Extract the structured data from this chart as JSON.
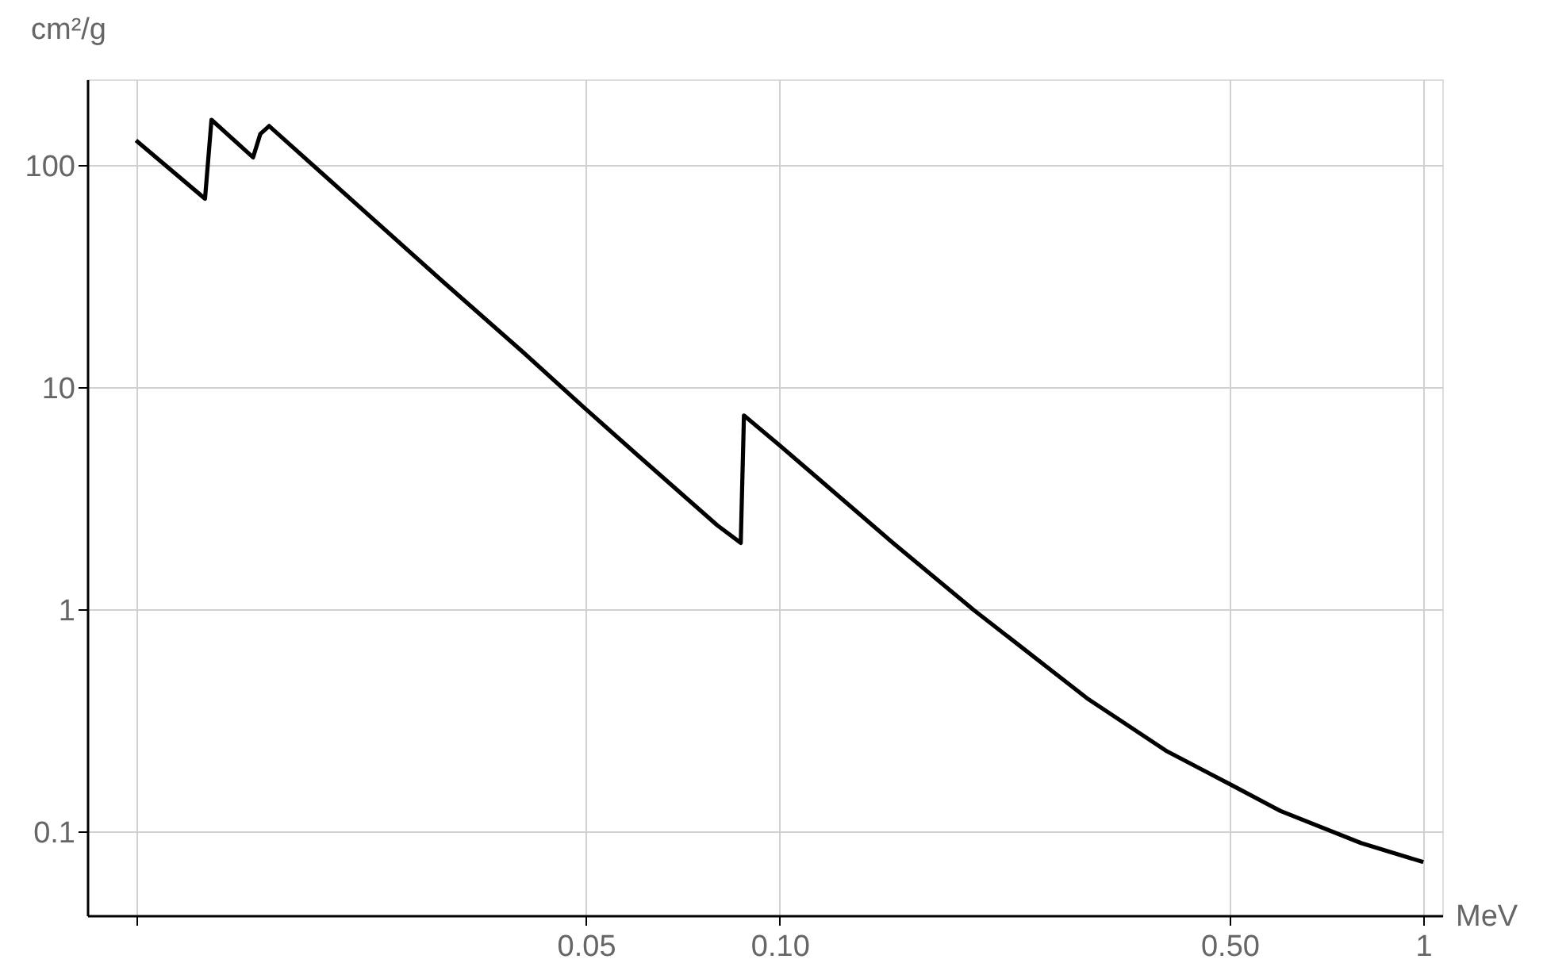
{
  "chart_data": {
    "type": "line",
    "xlabel": "MeV",
    "ylabel": "cm²/g",
    "log": "xy",
    "grid": true,
    "line_style": "solid",
    "x": [
      0.01,
      0.0128,
      0.0131,
      0.0152,
      0.0156,
      0.0161,
      0.02,
      0.03,
      0.04,
      0.05,
      0.06,
      0.08,
      0.087,
      0.088,
      0.1,
      0.15,
      0.2,
      0.3,
      0.4,
      0.5,
      0.6,
      0.8,
      1.0
    ],
    "series": [
      {
        "color": "#000000",
        "values": [
          130,
          71,
          161,
          109,
          139,
          151,
          86,
          30,
          14.4,
          8.0,
          5.0,
          2.4,
          2.0,
          7.5,
          5.5,
          2.0,
          1.0,
          0.4,
          0.23,
          0.164,
          0.124,
          0.089,
          0.073
        ]
      }
    ],
    "xlim": [
      0.0084,
      1.07
    ],
    "ylim": [
      0.042,
      245
    ],
    "xticks": [
      {
        "value": 0.01,
        "label": null
      },
      0.05,
      {
        "value": 0.1,
        "label": "0.10"
      },
      {
        "value": 0.5,
        "label": "0.50"
      },
      1
    ],
    "yticks": [
      0.1,
      1,
      10,
      100
    ]
  }
}
